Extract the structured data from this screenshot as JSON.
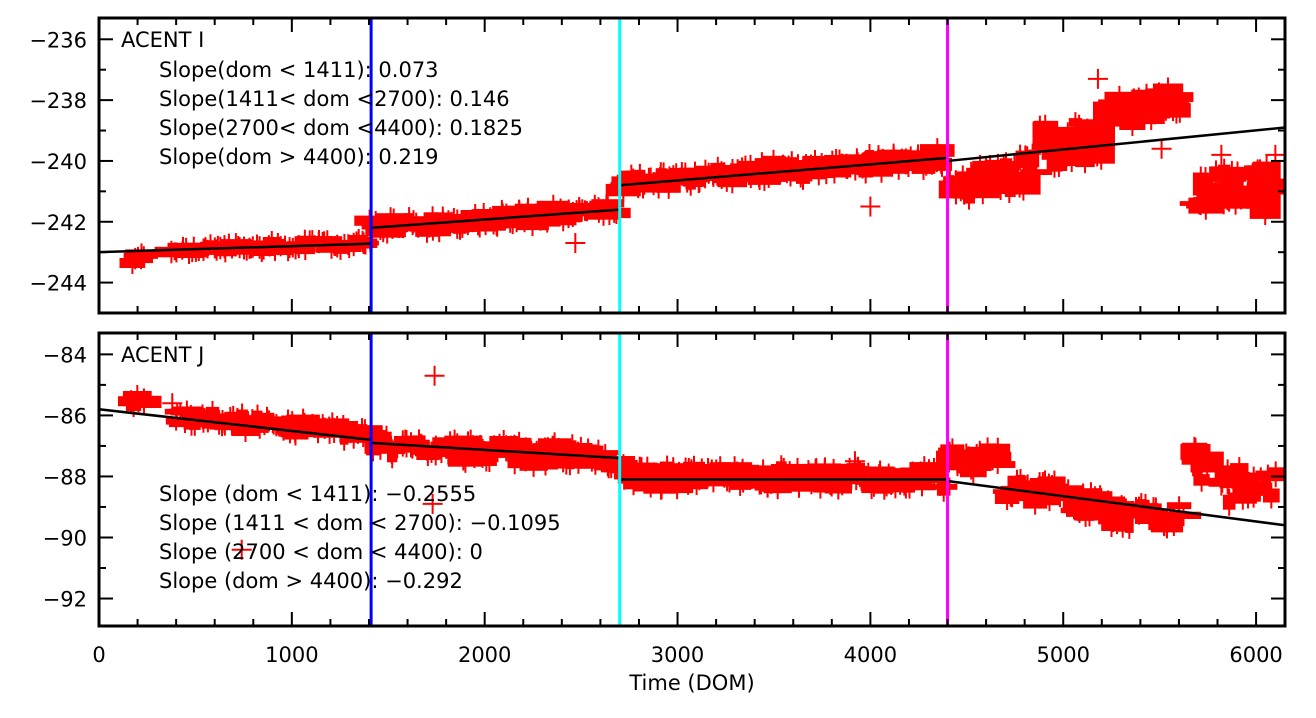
{
  "chart_data": {
    "type": "scatter",
    "xlabel": "Time (DOM)",
    "xlim": [
      0,
      6150
    ],
    "xticks": [
      0,
      1000,
      2000,
      3000,
      4000,
      5000,
      6000
    ],
    "xtick_labels": [
      "0",
      "1000",
      "2000",
      "3000",
      "4000",
      "5000",
      "6000"
    ],
    "x_minor_step": 200,
    "marker_color": "#ff0000",
    "fit_color": "#000000",
    "vlines": [
      {
        "x": 1411,
        "color": "#0000ff"
      },
      {
        "x": 2700,
        "color": "#00ffff"
      },
      {
        "x": 4400,
        "color": "#ff00ff"
      }
    ],
    "panels": [
      {
        "name": "ACENT I",
        "title": "ACENT I",
        "ylim": [
          -245.0,
          -235.3
        ],
        "yticks": [
          -236,
          -238,
          -240,
          -242,
          -244
        ],
        "ytick_labels": [
          "−236",
          "−238",
          "−240",
          "−242",
          "−244"
        ],
        "y_minor_step": 1,
        "annotations": [
          "Slope(dom < 1411): 0.073",
          "Slope(1411< dom <2700): 0.146",
          "Slope(2700< dom <4400): 0.1825",
          "Slope(dom > 4400): 0.219"
        ],
        "annotation_anchor": "top-left",
        "fit_segments": [
          {
            "x": [
              0,
              1411
            ],
            "y": [
              -243.0,
              -242.72
            ]
          },
          {
            "x": [
              1411,
              2700
            ],
            "y": [
              -242.2,
              -241.6
            ]
          },
          {
            "x": [
              2700,
              4400
            ],
            "y": [
              -240.8,
              -239.9
            ]
          },
          {
            "x": [
              4400,
              6150
            ],
            "y": [
              -240.0,
              -238.9
            ]
          }
        ],
        "clusters": [
          {
            "x": [
              170,
              240
            ],
            "y": [
              -243.3,
              -243.1
            ],
            "spread": 0.2
          },
          {
            "x": [
              380,
              1400
            ],
            "y": [
              -242.95,
              -242.7
            ],
            "spread": 0.25
          },
          {
            "x": [
              1411,
              2680
            ],
            "y": [
              -242.2,
              -241.6
            ],
            "spread": 0.35
          },
          {
            "x": [
              2710,
              4380
            ],
            "y": [
              -240.7,
              -239.9
            ],
            "spread": 0.4
          },
          {
            "x": [
              4420,
              4800
            ],
            "y": [
              -240.9,
              -240.3
            ],
            "spread": 0.7
          },
          {
            "x": [
              4800,
              5220
            ],
            "y": [
              -240.0,
              -239.0
            ],
            "spread": 1.0
          },
          {
            "x": [
              5250,
              5620
            ],
            "y": [
              -238.4,
              -238.0
            ],
            "spread": 0.6
          },
          {
            "x": [
              5690,
              5740
            ],
            "y": [
              -241.2,
              -241.2
            ],
            "spread": 1.2
          },
          {
            "x": [
              5780,
              6100
            ],
            "y": [
              -240.9,
              -240.8
            ],
            "spread": 0.9
          }
        ],
        "outliers": [
          {
            "x": 5180,
            "y": -237.3
          },
          {
            "x": 5510,
            "y": -239.6
          },
          {
            "x": 4000,
            "y": -241.5
          },
          {
            "x": 2470,
            "y": -242.7
          },
          {
            "x": 5820,
            "y": -239.8
          },
          {
            "x": 6100,
            "y": -239.8
          }
        ]
      },
      {
        "name": "ACENT J",
        "title": "ACENT J",
        "ylim": [
          -92.9,
          -83.3
        ],
        "yticks": [
          -84,
          -86,
          -88,
          -90,
          -92
        ],
        "ytick_labels": [
          "−84",
          "−86",
          "−88",
          "−90",
          "−92"
        ],
        "y_minor_step": 1,
        "annotations": [
          "Slope (dom < 1411): −0.2555",
          "Slope (1411 < dom < 2700): −0.1095",
          "Slope (2700 < dom < 4400): 0",
          "Slope (dom > 4400): −0.292"
        ],
        "annotation_anchor": "bottom-left",
        "fit_segments": [
          {
            "x": [
              0,
              1411
            ],
            "y": [
              -85.8,
              -86.8
            ]
          },
          {
            "x": [
              1411,
              2700
            ],
            "y": [
              -86.9,
              -87.4
            ]
          },
          {
            "x": [
              2700,
              4400
            ],
            "y": [
              -88.1,
              -88.1
            ]
          },
          {
            "x": [
              4400,
              6150
            ],
            "y": [
              -88.15,
              -89.6
            ]
          }
        ],
        "clusters": [
          {
            "x": [
              160,
              240
            ],
            "y": [
              -85.6,
              -85.6
            ],
            "spread": 0.3
          },
          {
            "x": [
              400,
              1400
            ],
            "y": [
              -86.0,
              -86.6
            ],
            "spread": 0.35
          },
          {
            "x": [
              1411,
              2690
            ],
            "y": [
              -87.0,
              -87.4
            ],
            "spread": 0.45
          },
          {
            "x": [
              2710,
              4380
            ],
            "y": [
              -88.0,
              -88.1
            ],
            "spread": 0.5
          },
          {
            "x": [
              4400,
              4700
            ],
            "y": [
              -87.6,
              -87.3
            ],
            "spread": 0.5
          },
          {
            "x": [
              4700,
              5250
            ],
            "y": [
              -88.3,
              -89.1
            ],
            "spread": 0.6
          },
          {
            "x": [
              5250,
              5620
            ],
            "y": [
              -89.3,
              -89.3
            ],
            "spread": 0.5
          },
          {
            "x": [
              5680,
              5740
            ],
            "y": [
              -87.7,
              -87.7
            ],
            "spread": 0.8
          },
          {
            "x": [
              5830,
              6100
            ],
            "y": [
              -88.4,
              -88.3
            ],
            "spread": 0.7
          }
        ],
        "outliers": [
          {
            "x": 1740,
            "y": -84.7
          },
          {
            "x": 740,
            "y": -90.4
          },
          {
            "x": 1730,
            "y": -88.9
          },
          {
            "x": 380,
            "y": -85.6
          },
          {
            "x": 3920,
            "y": -87.5
          },
          {
            "x": 5820,
            "y": -88.3
          }
        ]
      }
    ]
  }
}
